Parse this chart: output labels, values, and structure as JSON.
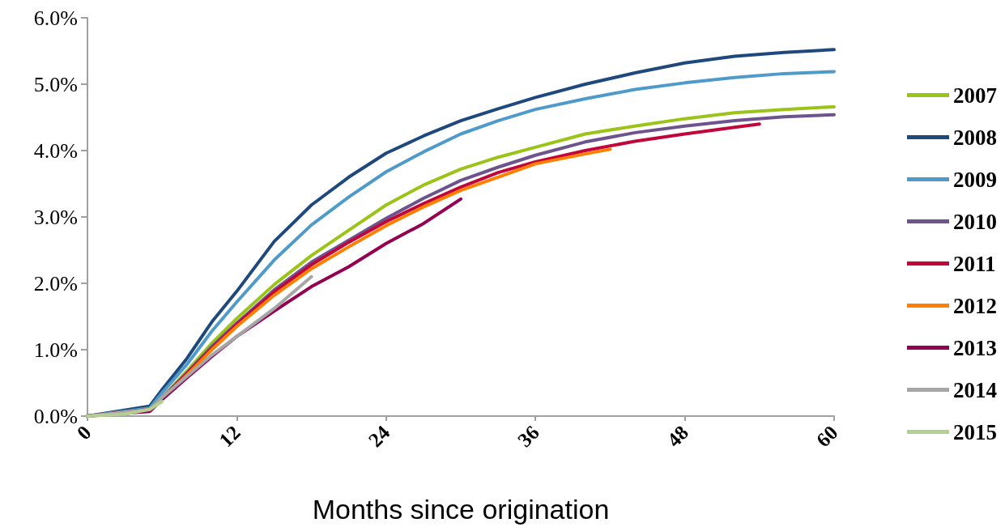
{
  "chart_data": {
    "type": "line",
    "xlabel": "Months since origination",
    "x": [
      0,
      5,
      6,
      8,
      10,
      12,
      15,
      18,
      21,
      24,
      27,
      30,
      33,
      36,
      40,
      44,
      48,
      52,
      56,
      60
    ],
    "series": [
      {
        "name": "2007",
        "color": "#9bc31a",
        "values": [
          0,
          0.1,
          0.28,
          0.68,
          1.1,
          1.47,
          1.98,
          2.42,
          2.8,
          3.18,
          3.48,
          3.72,
          3.9,
          4.05,
          4.25,
          4.37,
          4.48,
          4.57,
          4.62,
          4.66
        ]
      },
      {
        "name": "2008",
        "color": "#1f497d",
        "values": [
          0,
          0.15,
          0.4,
          0.87,
          1.42,
          1.88,
          2.63,
          3.18,
          3.6,
          3.96,
          4.22,
          4.45,
          4.63,
          4.8,
          5.0,
          5.17,
          5.32,
          5.42,
          5.48,
          5.52
        ]
      },
      {
        "name": "2009",
        "color": "#4f9ac9",
        "values": [
          0,
          0.12,
          0.35,
          0.78,
          1.28,
          1.72,
          2.35,
          2.88,
          3.3,
          3.68,
          3.98,
          4.25,
          4.45,
          4.62,
          4.78,
          4.92,
          5.02,
          5.1,
          5.16,
          5.19
        ]
      },
      {
        "name": "2010",
        "color": "#6e548d",
        "values": [
          0,
          0.1,
          0.27,
          0.65,
          1.05,
          1.4,
          1.9,
          2.32,
          2.65,
          2.98,
          3.28,
          3.55,
          3.75,
          3.93,
          4.13,
          4.27,
          4.37,
          4.45,
          4.51,
          4.54
        ]
      },
      {
        "name": "2011",
        "color": "#c0063b",
        "x": [
          0,
          5,
          6,
          8,
          10,
          12,
          15,
          18,
          21,
          24,
          27,
          30,
          33,
          36,
          40,
          44,
          48,
          52,
          54
        ],
        "values": [
          0,
          0.1,
          0.27,
          0.64,
          1.02,
          1.38,
          1.87,
          2.28,
          2.62,
          2.93,
          3.2,
          3.45,
          3.67,
          3.83,
          4.0,
          4.14,
          4.25,
          4.35,
          4.4
        ]
      },
      {
        "name": "2012",
        "color": "#ff8000",
        "x": [
          6,
          8,
          10,
          12,
          15,
          18,
          21,
          24,
          27,
          30,
          33,
          36,
          40,
          42
        ],
        "values": [
          0.26,
          0.62,
          1.0,
          1.35,
          1.82,
          2.22,
          2.55,
          2.87,
          3.15,
          3.4,
          3.6,
          3.8,
          3.95,
          4.02
        ]
      },
      {
        "name": "2013",
        "color": "#93004f",
        "x": [
          0,
          5,
          6,
          8,
          10,
          12,
          15,
          18,
          21,
          24,
          27,
          30
        ],
        "values": [
          0,
          0.07,
          0.25,
          0.58,
          0.9,
          1.2,
          1.58,
          1.95,
          2.25,
          2.6,
          2.9,
          3.27
        ]
      },
      {
        "name": "2014",
        "color": "#a6a6a6",
        "x": [
          0,
          5,
          6,
          8,
          10,
          12,
          15,
          18
        ],
        "values": [
          0,
          0.1,
          0.28,
          0.6,
          0.92,
          1.2,
          1.62,
          2.1
        ]
      },
      {
        "name": "2015",
        "color": "#b5cf92",
        "x": [
          0,
          3,
          5,
          6
        ],
        "values": [
          0,
          0.03,
          0.1,
          0.22
        ]
      }
    ],
    "xlim": [
      0,
      60
    ],
    "xticks": [
      0,
      12,
      24,
      36,
      48,
      60
    ],
    "ylim": [
      0,
      6
    ],
    "yticks": [
      {
        "value": 0,
        "label": "0.0%"
      },
      {
        "value": 1,
        "label": "1.0%"
      },
      {
        "value": 2,
        "label": "2.0%"
      },
      {
        "value": 3,
        "label": "3.0%"
      },
      {
        "value": 4,
        "label": "4.0%"
      },
      {
        "value": 5,
        "label": "5.0%"
      },
      {
        "value": 6,
        "label": "6.0%"
      }
    ],
    "grid": false,
    "legend": "right",
    "marker": "none",
    "line_style": "solid"
  }
}
